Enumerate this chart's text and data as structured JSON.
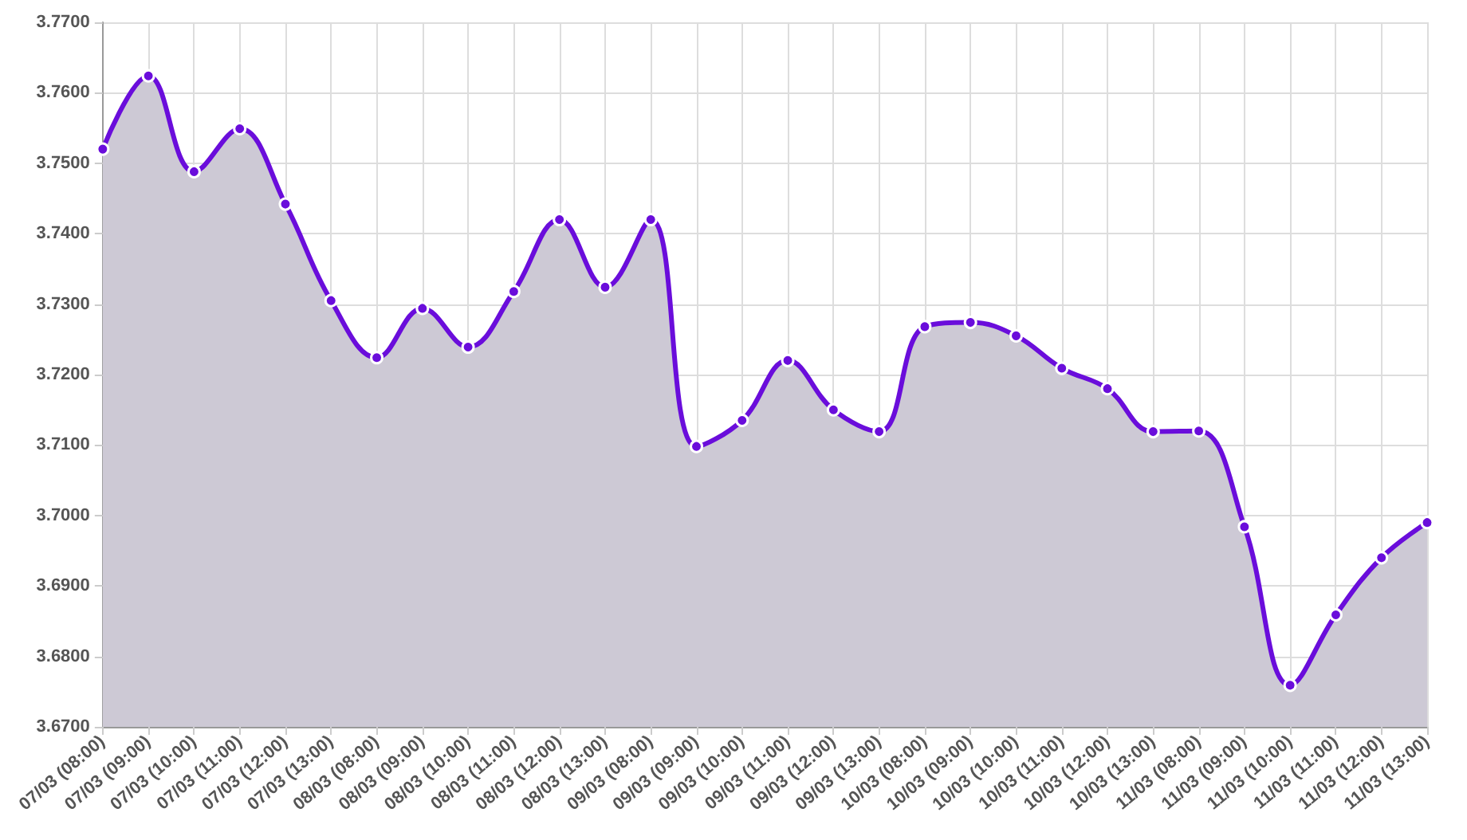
{
  "chart_data": {
    "type": "area",
    "categories": [
      "07/03 (08:00)",
      "07/03 (09:00)",
      "07/03 (10:00)",
      "07/03 (11:00)",
      "07/03 (12:00)",
      "07/03 (13:00)",
      "08/03 (08:00)",
      "08/03 (09:00)",
      "08/03 (10:00)",
      "08/03 (11:00)",
      "08/03 (12:00)",
      "08/03 (13:00)",
      "09/03 (08:00)",
      "09/03 (09:00)",
      "09/03 (10:00)",
      "09/03 (11:00)",
      "09/03 (12:00)",
      "09/03 (13:00)",
      "10/03 (08:00)",
      "10/03 (09:00)",
      "10/03 (10:00)",
      "10/03 (11:00)",
      "10/03 (12:00)",
      "10/03 (13:00)",
      "11/03 (08:00)",
      "11/03 (09:00)",
      "11/03 (10:00)",
      "11/03 (11:00)",
      "11/03 (12:00)",
      "11/03 (13:00)"
    ],
    "series": [
      {
        "color": "#6a0ddb",
        "values": [
          3.752,
          3.7624,
          3.7488,
          3.7549,
          3.7442,
          3.7305,
          3.7224,
          3.7294,
          3.7239,
          3.7318,
          3.742,
          3.7324,
          3.742,
          3.7098,
          3.7135,
          3.722,
          3.715,
          3.7119,
          3.7268,
          3.7274,
          3.7255,
          3.7209,
          3.718,
          3.7119,
          3.712,
          3.6984,
          3.6759,
          3.6859,
          3.694,
          3.699
        ]
      }
    ],
    "ylim": [
      3.67,
      3.77
    ],
    "yticks": [
      {
        "value": 3.67,
        "label": "3.6700"
      },
      {
        "value": 3.68,
        "label": "3.6800"
      },
      {
        "value": 3.69,
        "label": "3.6900"
      },
      {
        "value": 3.7,
        "label": "3.7000"
      },
      {
        "value": 3.71,
        "label": "3.7100"
      },
      {
        "value": 3.72,
        "label": "3.7200"
      },
      {
        "value": 3.73,
        "label": "3.7300"
      },
      {
        "value": 3.74,
        "label": "3.7400"
      },
      {
        "value": 3.75,
        "label": "3.7500"
      },
      {
        "value": 3.76,
        "label": "3.7600"
      },
      {
        "value": 3.77,
        "label": "3.7700"
      }
    ],
    "grid": true,
    "marker": "circle",
    "line_style": "solid"
  }
}
